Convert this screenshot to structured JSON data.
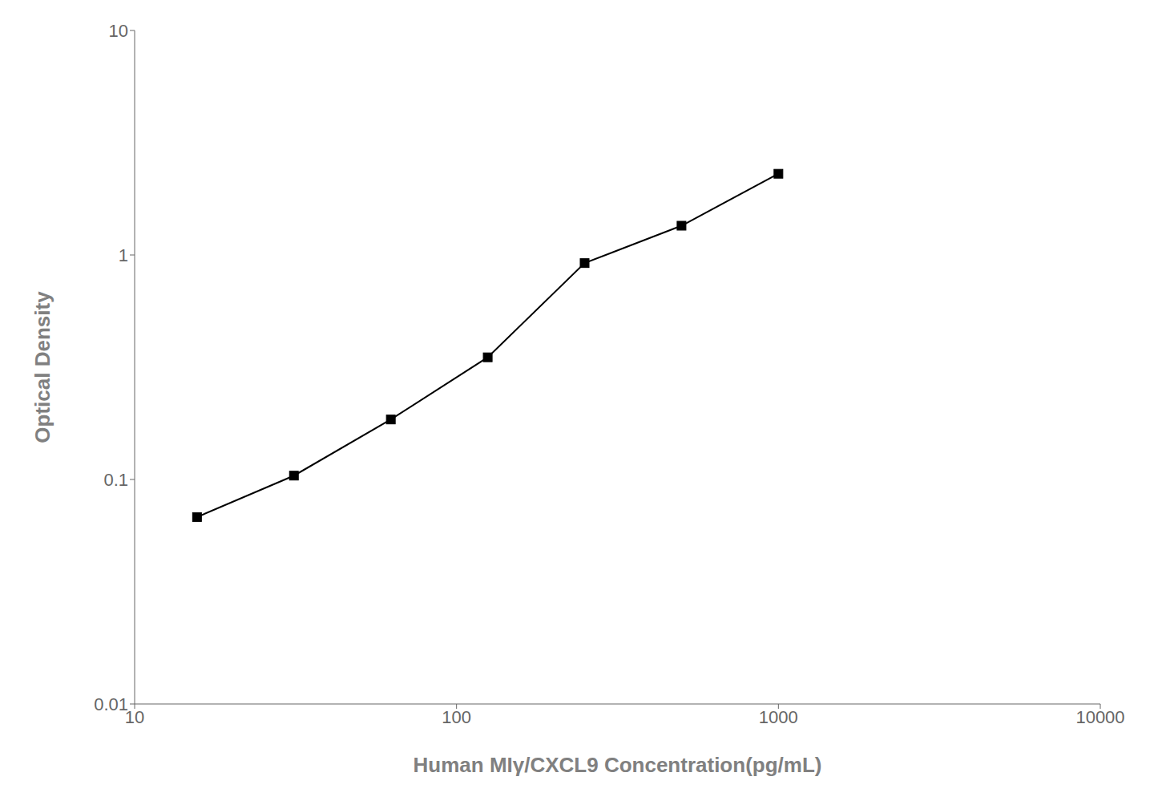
{
  "chart_data": {
    "type": "line",
    "xlabel": "Human MIγ/CXCL9 Concentration(pg/mL)",
    "ylabel": "Optical Density",
    "x": [
      15.625,
      31.25,
      62.5,
      125,
      250,
      500,
      1000
    ],
    "values": [
      0.068,
      0.104,
      0.185,
      0.35,
      0.92,
      1.35,
      2.3
    ],
    "xlim": [
      10,
      10000
    ],
    "ylim": [
      0.01,
      10
    ],
    "xticks": [
      10,
      100,
      1000,
      10000
    ],
    "yticks": [
      0.01,
      0.1,
      1,
      10
    ],
    "log": true,
    "grid": false,
    "color": "#000000",
    "marker": "square"
  }
}
